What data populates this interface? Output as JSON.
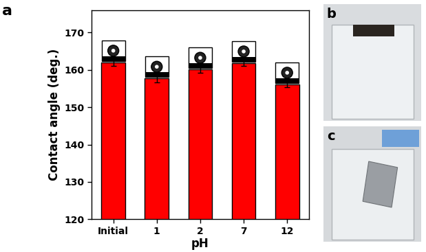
{
  "chart_data": {
    "type": "bar",
    "x_label": "pH",
    "y_label": "Contact angle (deg.)",
    "categories": [
      "Initial",
      "1",
      "2",
      "7",
      "12"
    ],
    "values": [
      162.0,
      157.7,
      160.1,
      161.8,
      156.1
    ],
    "error": [
      1.0,
      1.0,
      0.8,
      0.8,
      0.8
    ],
    "color": "#ff0000",
    "ylim": [
      120,
      176
    ],
    "yticks": [
      120,
      130,
      140,
      150,
      160,
      170
    ],
    "annotations": [
      "a",
      "b",
      "c"
    ]
  }
}
